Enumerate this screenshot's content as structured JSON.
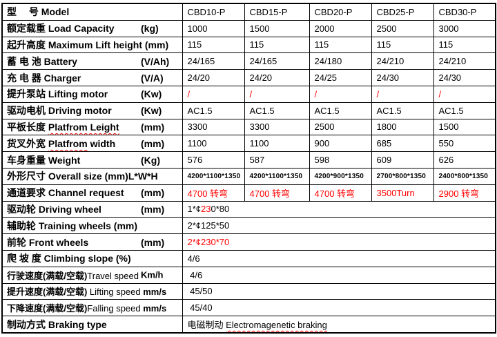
{
  "page": {
    "background": "#ffffff"
  },
  "colors": {
    "text": "#000000",
    "accent_red": "#ff0000",
    "border": "#000000"
  },
  "table": {
    "rows": [
      {
        "cn": "型　 号 ",
        "en": "Model",
        "values": [
          "CBD10-P",
          "CBD15-P",
          "CBD20-P",
          "CBD25-P",
          "CBD30-P"
        ]
      },
      {
        "cn": "额定载重 ",
        "en": "Load Capacity",
        "unit": "(kg)",
        "unit_far": true,
        "values": [
          "1000",
          "1500",
          "2000",
          "2500",
          "3000"
        ]
      },
      {
        "cn": "起升高度 ",
        "en": "Maximum Lift height (mm)",
        "values": [
          "115",
          "115",
          "115",
          "115",
          "115"
        ]
      },
      {
        "cn": "蓄 电 池 ",
        "en": "Battery",
        "unit": "(V/Ah)",
        "unit_far": true,
        "values": [
          "24/165",
          "24/165",
          "24/180",
          "24/210",
          "24/210"
        ]
      },
      {
        "cn": "充 电 器 ",
        "en": "Charger",
        "unit": "(V/A)",
        "unit_far": true,
        "values": [
          "24/20",
          "24/20",
          "24/25",
          "24/30",
          "24/30"
        ]
      },
      {
        "cn": "提升泵站 ",
        "en": "Lifting motor",
        "unit": "(Kw)",
        "unit_far": true,
        "red": true,
        "values": [
          "/",
          "/",
          "/",
          "/",
          "/"
        ]
      },
      {
        "cn": "驱动电机 ",
        "en": "Driving motor",
        "unit": "(Kw)",
        "unit_far": true,
        "values": [
          "AC1.5",
          "AC1.5",
          "AC1.5",
          "AC1.5",
          "AC1.5"
        ]
      },
      {
        "cn": "平板长度 ",
        "en": "Platfrom Leight",
        "wavy": true,
        "unit": "(mm)",
        "unit_far": true,
        "values": [
          "3300",
          "3300",
          "2500",
          "1800",
          "1500"
        ]
      },
      {
        "cn": "货叉外宽 ",
        "en": "Platfrom",
        "wavy": true,
        "en2": " width",
        "unit": "(mm)",
        "unit_far": true,
        "values": [
          "1100",
          "1100",
          "900",
          "685",
          "550"
        ]
      },
      {
        "cn": "车身重量 ",
        "en": "Weight",
        "unit": "(Kg)",
        "unit_far": true,
        "values": [
          "576",
          "587",
          "598",
          "609",
          "626"
        ]
      },
      {
        "cn": "外形尺寸 ",
        "en": "Overall size (mm)L*W*H",
        "small": true,
        "values": [
          "4200*1100*1350",
          "4200*1100*1350",
          "4200*900*1350",
          "2700*800*1350",
          "2400*800*1350"
        ]
      },
      {
        "cn": "通道要求 ",
        "en": "Channel request",
        "unit": "(mm)",
        "unit_far": true,
        "red": true,
        "values": [
          "4700 转弯",
          "4700 转弯",
          "4700 转弯",
          {
            "t": "3500Turn",
            "bold": true
          },
          "2900 转弯"
        ]
      },
      {
        "cn": "驱动轮 ",
        "en": "Driving wheel",
        "unit": "(mm)",
        "unit_far": true,
        "span": true,
        "values": [
          {
            "parts": [
              {
                "t": "1*¢"
              },
              {
                "t": "23",
                "red": true
              },
              {
                "t": "0*80"
              }
            ]
          }
        ]
      },
      {
        "cn": "辅助轮 ",
        "en": "Training wheels (mm)",
        "span": true,
        "values": [
          "2*¢125*50"
        ]
      },
      {
        "cn": "前轮 ",
        "en": "Front wheels",
        "unit": "(mm)",
        "unit_far": true,
        "span": true,
        "red": true,
        "values": [
          "2*¢230*70"
        ]
      },
      {
        "cn": "爬 坡 度 ",
        "en": "Climbing slope (%)",
        "span": true,
        "values": [
          "4/6"
        ]
      },
      {
        "cn": "行驶速度(满载/空载)",
        "en": "Travel speed",
        "en_regular": true,
        "unit": "Km/h",
        "unit_far": true,
        "span": true,
        "values": [
          " 4/6"
        ]
      },
      {
        "cn": "提升速度(满载/空载) ",
        "en": "Lifting speed",
        "en_regular": true,
        "unit": " mm/s",
        "span": true,
        "values": [
          " 45/50"
        ]
      },
      {
        "cn": "下降速度(满载/空载)",
        "en": "Falling speed",
        "en_regular": true,
        "unit": " mm/s",
        "span": true,
        "values": [
          " 45/40"
        ]
      },
      {
        "cn": "制动方式 ",
        "en": "Braking type",
        "span": true,
        "values": [
          {
            "parts": [
              {
                "t": "电磁制动 "
              },
              {
                "t": "Electromagenetic braking",
                "wavy": true
              }
            ],
            "bold": true
          }
        ]
      }
    ]
  }
}
